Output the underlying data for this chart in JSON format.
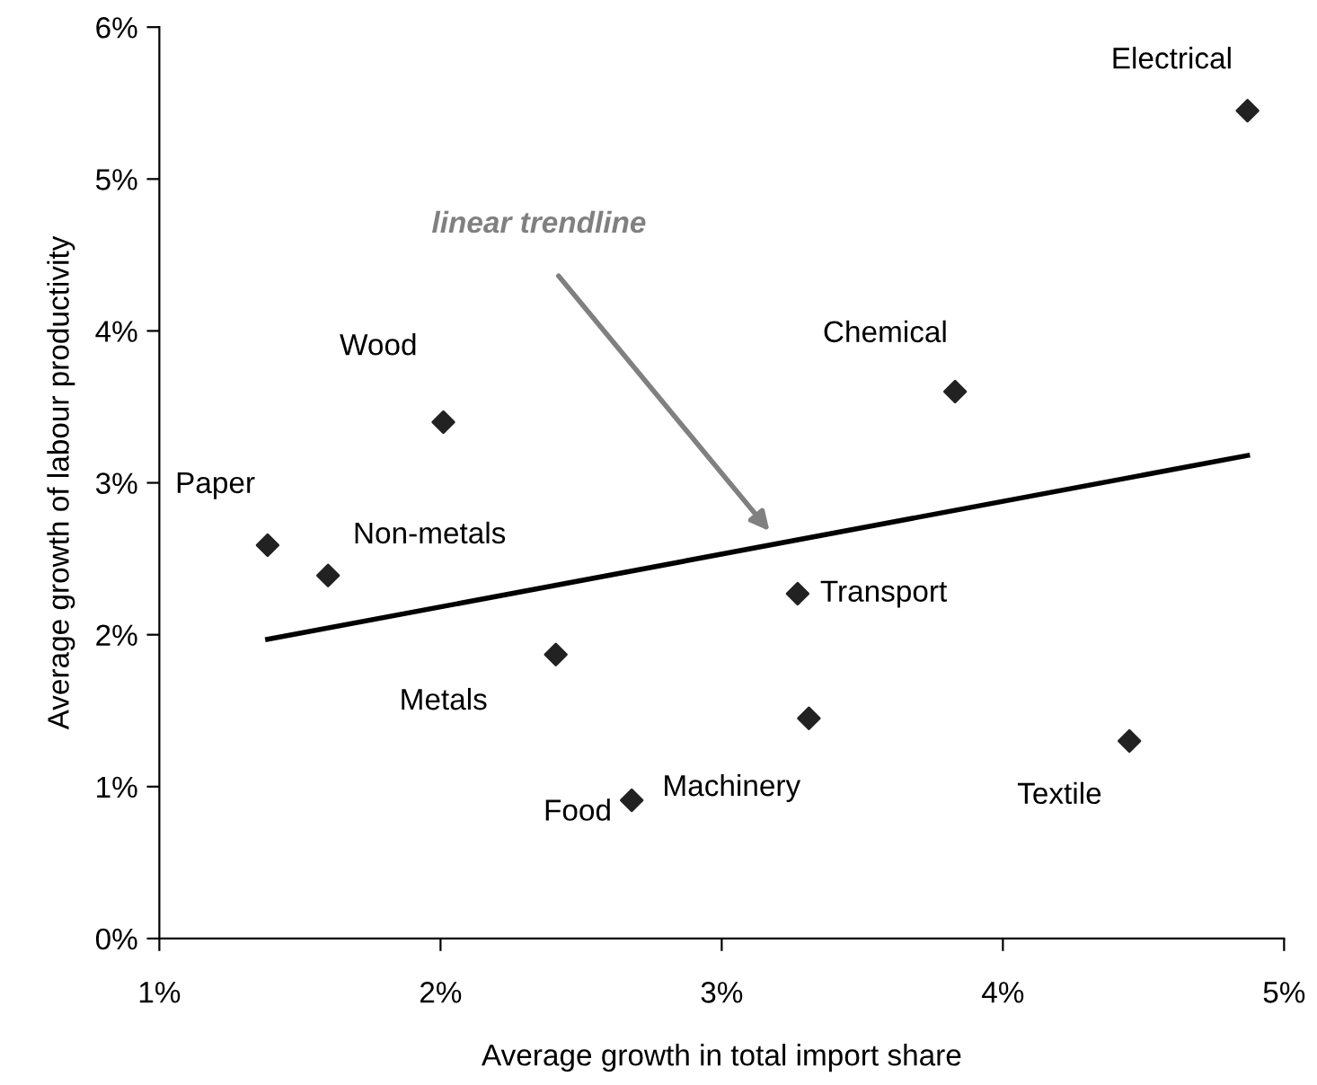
{
  "chart_data": {
    "type": "scatter",
    "xlabel": "Average growth in total import share",
    "ylabel": "Average growth of labour productivity",
    "x": [
      1.385,
      1.6,
      2.01,
      2.41,
      2.68,
      3.27,
      3.31,
      3.83,
      4.45,
      4.87
    ],
    "series": [
      {
        "type": "scatter",
        "color": "#222222",
        "marker": "diamond",
        "values": [
          2.59,
          2.39,
          3.4,
          1.87,
          0.91,
          2.27,
          1.45,
          3.6,
          1.3,
          5.45
        ]
      },
      {
        "type": "line",
        "color": "#000000",
        "line_style": "solid",
        "marker": "none",
        "x": [
          1.385,
          4.87
        ],
        "values": [
          1.97,
          3.18
        ]
      }
    ],
    "annotations": [
      {
        "text": "Paper",
        "x": 1.385,
        "y": 2.59
      },
      {
        "text": "Non-metals",
        "x": 1.6,
        "y": 2.39
      },
      {
        "text": "Wood",
        "x": 2.01,
        "y": 3.4
      },
      {
        "text": "Metals",
        "x": 2.41,
        "y": 1.87
      },
      {
        "text": "Food",
        "x": 2.68,
        "y": 0.91
      },
      {
        "text": "Transport",
        "x": 3.27,
        "y": 2.27
      },
      {
        "text": "Machinery",
        "x": 3.31,
        "y": 1.45
      },
      {
        "text": "Chemical",
        "x": 3.83,
        "y": 3.6
      },
      {
        "text": "Textile",
        "x": 4.45,
        "y": 1.3
      },
      {
        "text": "Electrical",
        "x": 4.87,
        "y": 5.45
      },
      "linear trendline"
    ],
    "xlim": [
      1,
      5
    ],
    "xticks": [
      {
        "value": 1,
        "label": "1%"
      },
      {
        "value": 2,
        "label": "2%"
      },
      {
        "value": 3,
        "label": "3%"
      },
      {
        "value": 4,
        "label": "4%"
      },
      {
        "value": 5,
        "label": "5%"
      }
    ],
    "ylim": [
      0,
      6
    ],
    "yticks": [
      {
        "value": 0,
        "label": "0%"
      },
      {
        "value": 1,
        "label": "1%"
      },
      {
        "value": 2,
        "label": "2%"
      },
      {
        "value": 3,
        "label": "3%"
      },
      {
        "value": 4,
        "label": "4%"
      },
      {
        "value": 5,
        "label": "5%"
      },
      {
        "value": 6,
        "label": "6%"
      }
    ],
    "grid": false,
    "legend": false
  }
}
